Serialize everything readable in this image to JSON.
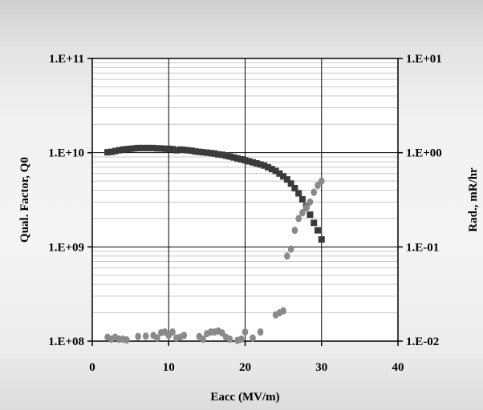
{
  "chart_data": {
    "type": "scatter",
    "xlabel": "Eacc (MV/m)",
    "ylabel": "Qual. Factor, Q0",
    "y2label": "Rad., mR/hr",
    "xlim": [
      0,
      40
    ],
    "ylim": [
      100000000.0,
      100000000000.0
    ],
    "y2lim": [
      0.01,
      10
    ],
    "yscale": "log",
    "y2scale": "log",
    "grid": true,
    "x_ticks": [
      "0",
      "10",
      "20",
      "30",
      "40"
    ],
    "y_ticks": [
      "1.E+08",
      "1.E+09",
      "1.E+10",
      "1.E+11"
    ],
    "y2_ticks": [
      "1.E-02",
      "1.E-01",
      "1.E+00",
      "1.E+01"
    ],
    "series": [
      {
        "axis": "left",
        "marker": "square",
        "color": "#3a3a3a",
        "points": [
          [
            2.0,
            10100000000.0
          ],
          [
            2.5,
            10200000000.0
          ],
          [
            3.0,
            10400000000.0
          ],
          [
            3.5,
            10600000000.0
          ],
          [
            4.0,
            10800000000.0
          ],
          [
            4.5,
            10900000000.0
          ],
          [
            5.0,
            11000000000.0
          ],
          [
            5.5,
            11100000000.0
          ],
          [
            6.0,
            11200000000.0
          ],
          [
            6.5,
            11200000000.0
          ],
          [
            7.0,
            11200000000.0
          ],
          [
            7.5,
            11200000000.0
          ],
          [
            8.0,
            11200000000.0
          ],
          [
            8.5,
            11100000000.0
          ],
          [
            9.0,
            11100000000.0
          ],
          [
            9.5,
            11000000000.0
          ],
          [
            10.0,
            11000000000.0
          ],
          [
            10.5,
            10900000000.0
          ],
          [
            11.0,
            10600000000.0
          ],
          [
            11.5,
            10800000000.0
          ],
          [
            12.0,
            10700000000.0
          ],
          [
            12.5,
            10600000000.0
          ],
          [
            13.0,
            10500000000.0
          ],
          [
            13.5,
            10300000000.0
          ],
          [
            14.0,
            10200000000.0
          ],
          [
            14.5,
            10100000000.0
          ],
          [
            15.0,
            10000000000.0
          ],
          [
            15.5,
            9900000000.0
          ],
          [
            16.0,
            9800000000.0
          ],
          [
            16.5,
            9600000000.0
          ],
          [
            17.0,
            9500000000.0
          ],
          [
            17.5,
            9300000000.0
          ],
          [
            18.0,
            9100000000.0
          ],
          [
            18.5,
            8900000000.0
          ],
          [
            19.0,
            8700000000.0
          ],
          [
            19.5,
            8500000000.0
          ],
          [
            20.0,
            8300000000.0
          ],
          [
            20.5,
            8100000000.0
          ],
          [
            21.0,
            7900000000.0
          ],
          [
            21.5,
            7700000000.0
          ],
          [
            22.0,
            7500000000.0
          ],
          [
            22.5,
            7300000000.0
          ],
          [
            23.0,
            7000000000.0
          ],
          [
            23.5,
            6700000000.0
          ],
          [
            24.0,
            6400000000.0
          ],
          [
            24.5,
            6000000000.0
          ],
          [
            25.0,
            5600000000.0
          ],
          [
            25.5,
            5200000000.0
          ],
          [
            26.0,
            4700000000.0
          ],
          [
            26.5,
            4200000000.0
          ],
          [
            27.0,
            3700000000.0
          ],
          [
            27.5,
            3200000000.0
          ],
          [
            28.0,
            2700000000.0
          ],
          [
            28.5,
            2200000000.0
          ],
          [
            29.0,
            1800000000.0
          ],
          [
            29.5,
            1500000000.0
          ],
          [
            30.0,
            1200000000.0
          ]
        ]
      },
      {
        "axis": "right",
        "marker": "circle",
        "color": "#8a8a8a",
        "points": [
          [
            2.0,
            0.011
          ],
          [
            2.5,
            0.0105
          ],
          [
            3.0,
            0.011
          ],
          [
            3.5,
            0.0105
          ],
          [
            4.0,
            0.0105
          ],
          [
            4.5,
            0.0103
          ],
          [
            6.0,
            0.0112
          ],
          [
            7.0,
            0.0113
          ],
          [
            8.0,
            0.0115
          ],
          [
            8.5,
            0.0108
          ],
          [
            9.0,
            0.0123
          ],
          [
            9.5,
            0.0125
          ],
          [
            10.0,
            0.0115
          ],
          [
            10.5,
            0.0125
          ],
          [
            11.0,
            0.0108
          ],
          [
            11.5,
            0.011
          ],
          [
            12.0,
            0.0115
          ],
          [
            14.0,
            0.0112
          ],
          [
            14.5,
            0.0105
          ],
          [
            15.0,
            0.012
          ],
          [
            15.5,
            0.0125
          ],
          [
            16.0,
            0.0125
          ],
          [
            16.5,
            0.0128
          ],
          [
            17.0,
            0.0122
          ],
          [
            17.5,
            0.011
          ],
          [
            18.0,
            0.0105
          ],
          [
            19.0,
            0.0102
          ],
          [
            19.5,
            0.0105
          ],
          [
            20.0,
            0.0125
          ],
          [
            21.0,
            0.0108
          ],
          [
            22.0,
            0.0125
          ],
          [
            24.0,
            0.019
          ],
          [
            24.5,
            0.02
          ],
          [
            25.0,
            0.021
          ],
          [
            25.5,
            0.08
          ],
          [
            26.0,
            0.095
          ],
          [
            26.5,
            0.15
          ],
          [
            27.0,
            0.2
          ],
          [
            27.5,
            0.23
          ],
          [
            28.0,
            0.26
          ],
          [
            28.5,
            0.3
          ],
          [
            29.0,
            0.38
          ],
          [
            29.5,
            0.45
          ],
          [
            30.0,
            0.5
          ]
        ]
      }
    ]
  }
}
